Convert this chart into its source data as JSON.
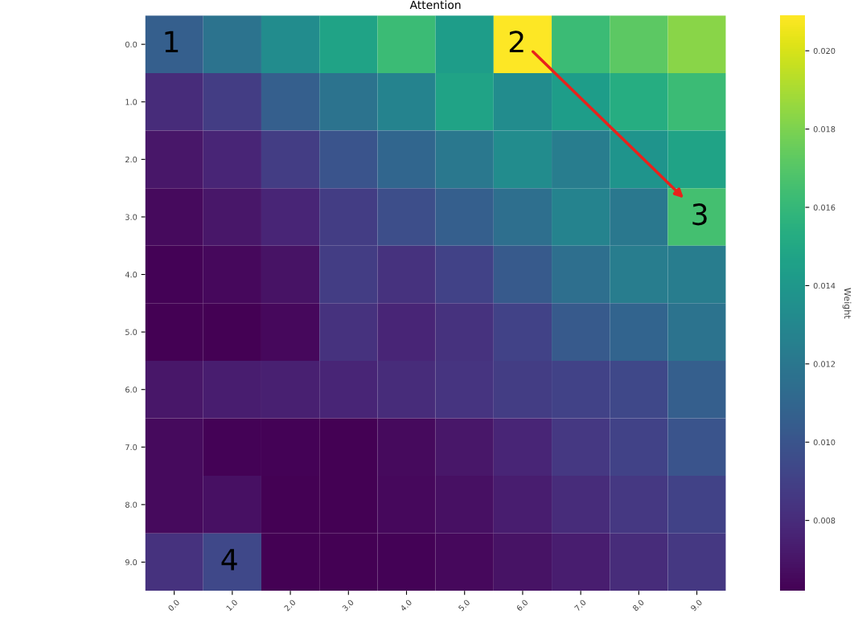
{
  "chart_data": {
    "type": "heatmap",
    "title": "Attention",
    "clabel": "Weight",
    "categories": [
      "0.0",
      "1.0",
      "2.0",
      "3.0",
      "4.0",
      "5.0",
      "6.0",
      "7.0",
      "8.0",
      "9.0"
    ],
    "y_categories": [
      "0.0",
      "1.0",
      "2.0",
      "3.0",
      "4.0",
      "5.0",
      "6.0",
      "7.0",
      "8.0",
      "9.0"
    ],
    "cells": [
      [
        0.0106,
        0.0118,
        0.0133,
        0.0147,
        0.0162,
        0.0143,
        0.0209,
        0.0162,
        0.0172,
        0.0183
      ],
      [
        0.008,
        0.0088,
        0.0106,
        0.0118,
        0.0128,
        0.0147,
        0.0133,
        0.0143,
        0.0153,
        0.0162
      ],
      [
        0.0071,
        0.0077,
        0.0088,
        0.01,
        0.011,
        0.0121,
        0.0133,
        0.0124,
        0.0138,
        0.0147
      ],
      [
        0.0066,
        0.0071,
        0.0077,
        0.0088,
        0.0097,
        0.0106,
        0.0115,
        0.0128,
        0.0121,
        0.0165
      ],
      [
        0.0063,
        0.0065,
        0.0069,
        0.0088,
        0.0083,
        0.0091,
        0.0103,
        0.0115,
        0.0124,
        0.0124
      ],
      [
        0.0062,
        0.0062,
        0.0065,
        0.0083,
        0.0077,
        0.0083,
        0.0091,
        0.0103,
        0.0109,
        0.0118
      ],
      [
        0.0071,
        0.0074,
        0.0075,
        0.0077,
        0.008,
        0.0084,
        0.0088,
        0.0091,
        0.0094,
        0.0106
      ],
      [
        0.0066,
        0.0063,
        0.0063,
        0.0062,
        0.0066,
        0.0071,
        0.0077,
        0.0086,
        0.0091,
        0.01
      ],
      [
        0.0066,
        0.0068,
        0.0062,
        0.0062,
        0.0065,
        0.0068,
        0.0074,
        0.008,
        0.0086,
        0.0091
      ],
      [
        0.0083,
        0.0094,
        0.0062,
        0.0062,
        0.0063,
        0.0065,
        0.0069,
        0.0074,
        0.008,
        0.0086
      ]
    ],
    "clim": [
      0.0062,
      0.0209
    ],
    "cticks": [
      0.008,
      {
        "value": 0.01,
        "label": "0.010"
      },
      0.012,
      0.014,
      0.016,
      0.018,
      {
        "value": 0.02,
        "label": "0.020"
      }
    ],
    "annotations": [
      "1",
      "2",
      "3",
      "4"
    ]
  }
}
